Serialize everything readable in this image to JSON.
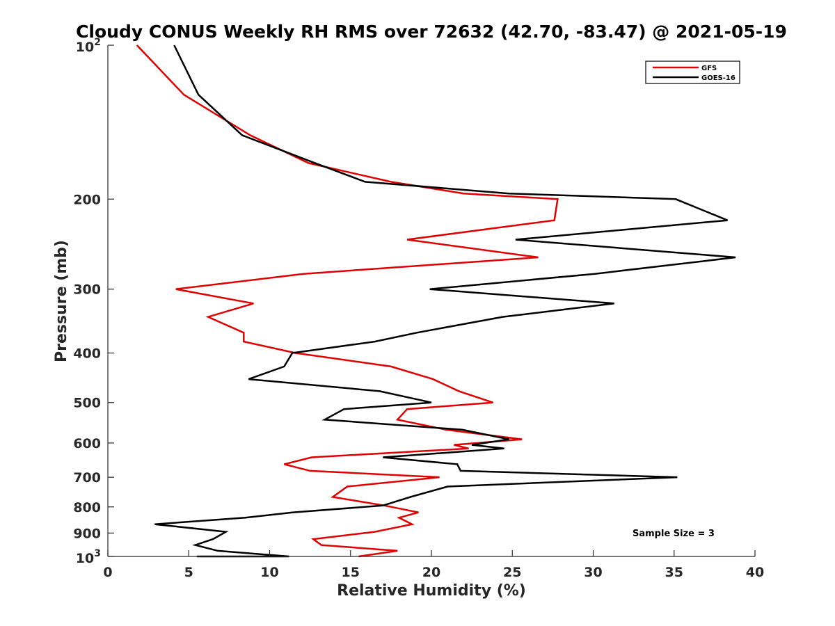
{
  "chart_data": {
    "type": "line",
    "title": "Cloudy CONUS Weekly RH RMS over 72632 (42.70, -83.47) @ 2021-05-19",
    "xlabel": "Relative Humidity (%)",
    "ylabel": "Pressure (mb)",
    "xlim": [
      0,
      40
    ],
    "ylim": [
      100,
      1000
    ],
    "y_scale": "log",
    "y_reversed": true,
    "grid": false,
    "legend_position": "top-right",
    "x_ticks": [
      0,
      5,
      10,
      15,
      20,
      25,
      30,
      35,
      40
    ],
    "x_tick_labels": [
      "0",
      "5",
      "10",
      "15",
      "20",
      "25",
      "30",
      "35",
      "40"
    ],
    "y_ticks": [
      200,
      300,
      400,
      500,
      600,
      700,
      800,
      900
    ],
    "y_tick_labels": [
      "200",
      "300",
      "400",
      "500",
      "600",
      "700",
      "800",
      "900"
    ],
    "y_tick_exp_labels": [
      {
        "value": 100,
        "base": "10",
        "exp": "2"
      },
      {
        "value": 1000,
        "base": "10",
        "exp": "3"
      }
    ],
    "series": [
      {
        "name": "GFS",
        "color": "#e00000",
        "points": [
          [
            1.8,
            100
          ],
          [
            4.7,
            125
          ],
          [
            8.8,
            150
          ],
          [
            12.4,
            170
          ],
          [
            17.5,
            185
          ],
          [
            22.0,
            195
          ],
          [
            27.8,
            200
          ],
          [
            27.6,
            220
          ],
          [
            18.5,
            240
          ],
          [
            26.6,
            260
          ],
          [
            12.1,
            280
          ],
          [
            4.2,
            300
          ],
          [
            9.0,
            320
          ],
          [
            6.2,
            340
          ],
          [
            8.4,
            365
          ],
          [
            8.4,
            380
          ],
          [
            11.6,
            400
          ],
          [
            17.5,
            425
          ],
          [
            20.1,
            450
          ],
          [
            21.7,
            475
          ],
          [
            23.8,
            500
          ],
          [
            18.5,
            515
          ],
          [
            17.9,
            540
          ],
          [
            20.9,
            565
          ],
          [
            25.6,
            590
          ],
          [
            21.4,
            605
          ],
          [
            22.3,
            615
          ],
          [
            12.6,
            640
          ],
          [
            10.9,
            660
          ],
          [
            12.5,
            680
          ],
          [
            20.5,
            700
          ],
          [
            14.8,
            730
          ],
          [
            13.9,
            765
          ],
          [
            17.1,
            795
          ],
          [
            19.2,
            820
          ],
          [
            18.0,
            840
          ],
          [
            18.8,
            865
          ],
          [
            16.5,
            895
          ],
          [
            12.7,
            925
          ],
          [
            13.2,
            950
          ],
          [
            17.9,
            975
          ],
          [
            15.5,
            1000
          ]
        ]
      },
      {
        "name": "GOES-16",
        "color": "#000000",
        "points": [
          [
            4.1,
            100
          ],
          [
            5.6,
            125
          ],
          [
            8.3,
            150
          ],
          [
            12.8,
            170
          ],
          [
            15.9,
            185
          ],
          [
            24.8,
            195
          ],
          [
            35.1,
            200
          ],
          [
            38.3,
            220
          ],
          [
            25.2,
            240
          ],
          [
            38.8,
            260
          ],
          [
            30.1,
            280
          ],
          [
            19.9,
            300
          ],
          [
            31.3,
            320
          ],
          [
            24.4,
            340
          ],
          [
            19.1,
            365
          ],
          [
            16.5,
            380
          ],
          [
            11.4,
            400
          ],
          [
            10.9,
            425
          ],
          [
            8.7,
            450
          ],
          [
            16.8,
            475
          ],
          [
            20.0,
            500
          ],
          [
            14.6,
            515
          ],
          [
            13.4,
            540
          ],
          [
            21.9,
            565
          ],
          [
            24.8,
            590
          ],
          [
            22.5,
            605
          ],
          [
            24.5,
            615
          ],
          [
            17.0,
            640
          ],
          [
            21.6,
            660
          ],
          [
            21.8,
            680
          ],
          [
            35.2,
            700
          ],
          [
            21.0,
            730
          ],
          [
            18.7,
            765
          ],
          [
            17.0,
            795
          ],
          [
            11.4,
            820
          ],
          [
            8.5,
            840
          ],
          [
            2.9,
            865
          ],
          [
            7.3,
            895
          ],
          [
            6.5,
            925
          ],
          [
            5.4,
            950
          ],
          [
            6.8,
            975
          ],
          [
            11.2,
            1000
          ],
          [
            5.5,
            1010
          ]
        ]
      }
    ],
    "annotation": "Sample Size = 3"
  }
}
